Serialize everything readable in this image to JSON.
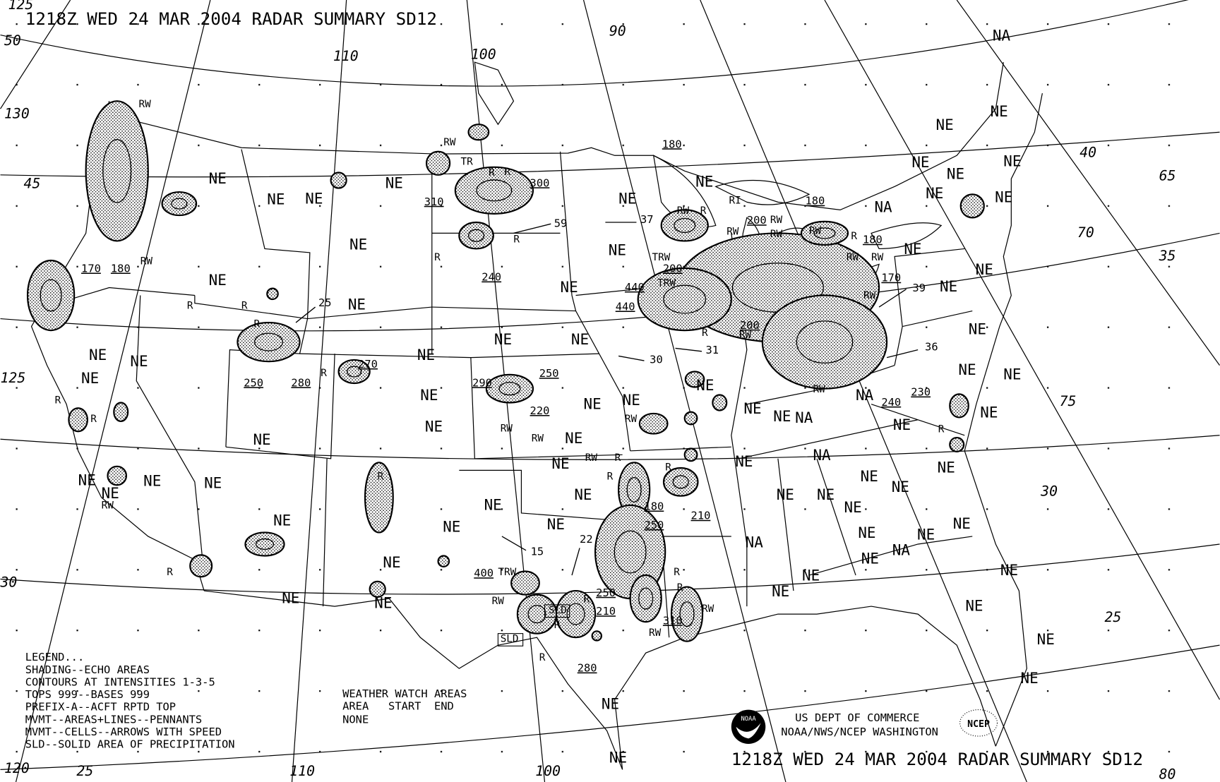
{
  "title_top": "1218Z WED 24 MAR 2004 RADAR SUMMARY SD12",
  "title_bottom": "1218Z WED 24 MAR 2004 RADAR SUMMARY SD12",
  "legend": {
    "heading": "LEGEND...",
    "lines": [
      "SHADING--ECHO AREAS",
      "CONTOURS AT INTENSITIES 1-3-5",
      "TOPS 999--BASES 999",
      "PREFIX-A--ACFT RPTD TOP",
      "MVMT--AREAS+LINES--PENNANTS",
      "MVMT--CELLS--ARROWS WITH SPEED",
      "SLD--SOLID AREA OF PRECIPITATION"
    ]
  },
  "watch": {
    "heading": "WEATHER WATCH AREAS",
    "columns": "AREA   START  END",
    "value": "NONE"
  },
  "credits": {
    "line1": "US DEPT OF COMMERCE",
    "line2": "NOAA/NWS/NCEP WASHINGTON",
    "noaa_logo": "NOAA",
    "ncep_logo": "NCEP"
  },
  "grid_labels": [
    "50",
    "130",
    "45",
    "125",
    "30",
    "120",
    "25",
    "110",
    "100",
    "90",
    "110",
    "100",
    "40",
    "65",
    "70",
    "35",
    "75",
    "30",
    "25",
    "80",
    "125"
  ],
  "station_labels": [
    "NE",
    "NE",
    "NE",
    "NE",
    "NE",
    "NE",
    "NE",
    "NE",
    "NE",
    "NE",
    "NE",
    "NE",
    "NE",
    "NE",
    "NE",
    "NE",
    "NE",
    "NE",
    "NE",
    "NE",
    "NE",
    "NE",
    "NE",
    "NE",
    "NE",
    "NE",
    "NE",
    "NE",
    "NE",
    "NE",
    "NE",
    "NE",
    "NE",
    "NE",
    "NE",
    "NE",
    "NE",
    "NE",
    "NE",
    "NE",
    "NE",
    "NE",
    "NE",
    "NE",
    "NE",
    "NE",
    "NE",
    "NE",
    "NE",
    "NE",
    "NE",
    "NE",
    "NE",
    "NE",
    "NE",
    "NE",
    "NE",
    "NE",
    "NE",
    "NE",
    "NE",
    "NE",
    "NE",
    "NE",
    "NE",
    "NE",
    "NE",
    "NE",
    "NE",
    "NE",
    "NE",
    "NE",
    "NE",
    "NA",
    "NA",
    "NA",
    "NA",
    "NA",
    "NA",
    "NA"
  ],
  "echo_tops": [
    "180",
    "300",
    "240",
    "170",
    "180",
    "200",
    "180",
    "180",
    "170",
    "440",
    "440",
    "200",
    "200",
    "270",
    "250",
    "280",
    "250",
    "290",
    "220",
    "180",
    "250",
    "210",
    "250",
    "210",
    "310",
    "280",
    "230",
    "240",
    "400",
    "310"
  ],
  "cell_speeds": [
    "59",
    "37",
    "25",
    "30",
    "31",
    "15",
    "22",
    "39",
    "36"
  ],
  "precip_types": [
    "RW",
    "R",
    "TR",
    "R",
    "R",
    "R",
    "R",
    "R",
    "R",
    "RW",
    "RW",
    "RW",
    "R",
    "RI",
    "RW",
    "RW",
    "RW",
    "RW",
    "RW",
    "TRW",
    "TRW",
    "RW",
    "R",
    "RW",
    "RW",
    "R",
    "RW",
    "RW",
    "RW",
    "RW",
    "R",
    "R",
    "RW",
    "RW",
    "R",
    "R",
    "R",
    "R",
    "TRW",
    "RW",
    "R",
    "R",
    "R",
    "R",
    "R",
    "R",
    "RW",
    "RW",
    "R",
    "R"
  ],
  "sld_labels": [
    "SLD",
    "SLD"
  ]
}
